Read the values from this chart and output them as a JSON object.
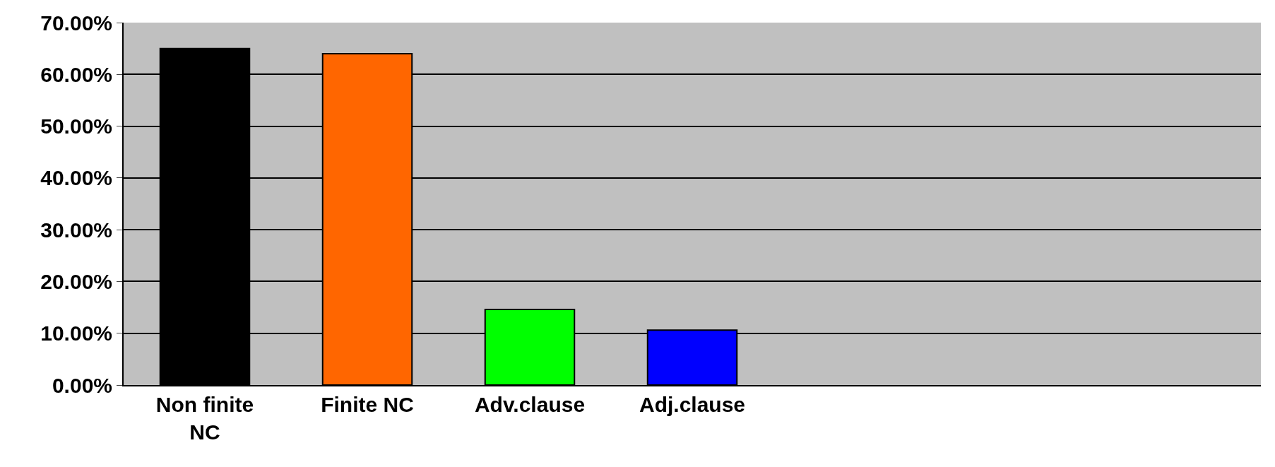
{
  "chart_data": {
    "type": "bar",
    "categories": [
      "Non finite NC",
      "Finite NC",
      "Adv.clause",
      "Adj.clause",
      null,
      null,
      null
    ],
    "values": [
      65,
      64,
      14.6,
      10.6,
      null,
      null,
      null
    ],
    "colors": [
      "#000000",
      "#ff6600",
      "#00ff00",
      "#0000ff",
      "#000000",
      "#000000",
      "#000000"
    ],
    "ylim": [
      0,
      70
    ],
    "yticks": [
      {
        "value": 0,
        "label": "0.00%"
      },
      {
        "value": 10,
        "label": "10.00%"
      },
      {
        "value": 20,
        "label": "20.00%"
      },
      {
        "value": 30,
        "label": "30.00%"
      },
      {
        "value": 40,
        "label": "40.00%"
      },
      {
        "value": 50,
        "label": "50.00%"
      },
      {
        "value": 60,
        "label": "60.00%"
      },
      {
        "value": 70,
        "label": "70.00%"
      }
    ],
    "grid": "y"
  }
}
